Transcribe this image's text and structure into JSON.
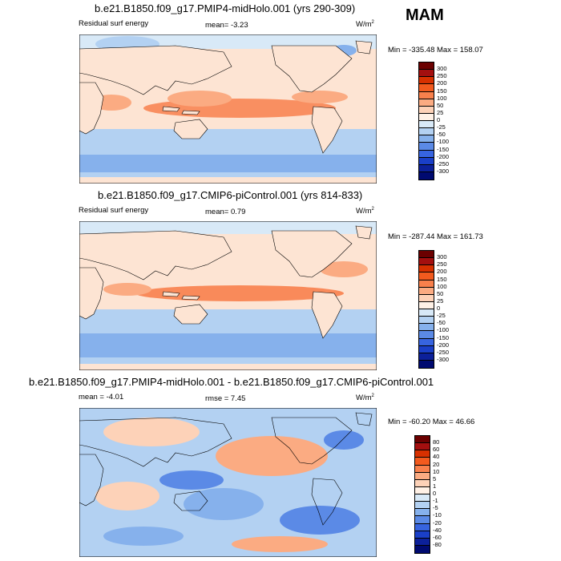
{
  "season": "MAM",
  "panels": [
    {
      "title": "b.e21.B1850.f09_g17.PMIP4-midHolo.001 (yrs 290-309)",
      "left_label": "Residual surf energy",
      "stat": "mean=   -3.23",
      "units": "W/m",
      "units_sup": "2",
      "minmax": "Min = -335.48 Max = 158.07",
      "levels": [
        "300",
        "250",
        "200",
        "150",
        "100",
        "50",
        "25",
        "0",
        "-25",
        "-50",
        "-100",
        "-150",
        "-200",
        "-250",
        "-300"
      ],
      "colors": [
        "#6b0000",
        "#a40f0f",
        "#d73000",
        "#f25a1e",
        "#f8804c",
        "#fbab82",
        "#fdd2b8",
        "#fff1e6",
        "#d8e9f7",
        "#b3d1f2",
        "#86b1ec",
        "#5b8ae6",
        "#3764e0",
        "#1a3fc8",
        "#0c209a",
        "#000a70"
      ]
    },
    {
      "title": "b.e21.B1850.f09_g17.CMIP6-piControl.001 (yrs 814-833)",
      "left_label": "Residual surf energy",
      "stat": "mean=   0.79",
      "units": "W/m",
      "units_sup": "2",
      "minmax": "Min = -287.44 Max = 161.73",
      "levels": [
        "300",
        "250",
        "200",
        "150",
        "100",
        "50",
        "25",
        "0",
        "-25",
        "-50",
        "-100",
        "-150",
        "-200",
        "-250",
        "-300"
      ],
      "colors": [
        "#6b0000",
        "#a40f0f",
        "#d73000",
        "#f25a1e",
        "#f8804c",
        "#fbab82",
        "#fdd2b8",
        "#fff1e6",
        "#d8e9f7",
        "#b3d1f2",
        "#86b1ec",
        "#5b8ae6",
        "#3764e0",
        "#1a3fc8",
        "#0c209a",
        "#000a70"
      ]
    },
    {
      "title": "b.e21.B1850.f09_g17.PMIP4-midHolo.001 - b.e21.B1850.f09_g17.CMIP6-piControl.001",
      "left_label": "mean =   -4.01",
      "stat": "rmse =   7.45",
      "units": "W/m",
      "units_sup": "2",
      "minmax": "Min = -60.20 Max =  46.66",
      "levels": [
        "80",
        "60",
        "40",
        "20",
        "10",
        "5",
        "1",
        "0",
        "-1",
        "-5",
        "-10",
        "-20",
        "-40",
        "-60",
        "-80"
      ],
      "colors": [
        "#6b0000",
        "#a40f0f",
        "#d73000",
        "#f25a1e",
        "#f8804c",
        "#fbab82",
        "#fdd2b8",
        "#fff1e6",
        "#d8e9f7",
        "#b3d1f2",
        "#86b1ec",
        "#5b8ae6",
        "#3764e0",
        "#1a3fc8",
        "#0c209a",
        "#000a70"
      ]
    }
  ]
}
